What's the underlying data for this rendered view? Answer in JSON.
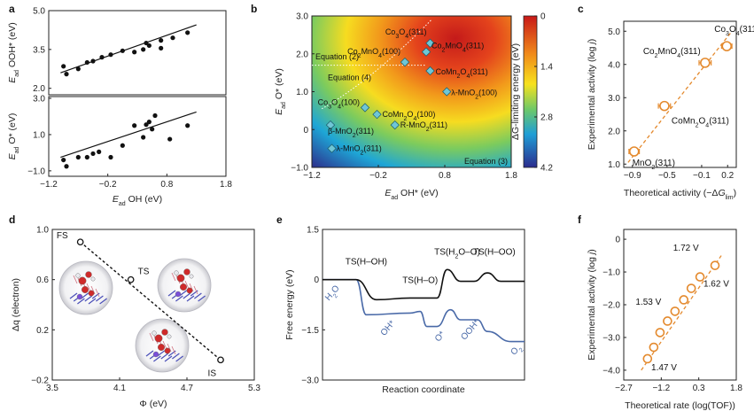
{
  "chart_data": [
    {
      "panel": "a",
      "type": "scatter",
      "subplots": [
        {
          "ylabel": "E_ad OOH* (eV)",
          "ylabel_parts": [
            "E",
            "ad",
            " OOH* (eV)"
          ],
          "ylim": [
            1.75,
            5.0
          ],
          "yticks": [
            "5.0",
            "3.5",
            "2.0"
          ],
          "ytick_values": [
            5.0,
            3.5,
            2.0
          ],
          "points": [
            [
              -0.95,
              2.85
            ],
            [
              -0.9,
              2.55
            ],
            [
              -0.7,
              2.75
            ],
            [
              -0.55,
              3.0
            ],
            [
              -0.45,
              3.05
            ],
            [
              -0.3,
              3.2
            ],
            [
              -0.15,
              3.3
            ],
            [
              0.05,
              3.45
            ],
            [
              0.25,
              3.4
            ],
            [
              0.4,
              3.5
            ],
            [
              0.45,
              3.75
            ],
            [
              0.5,
              3.65
            ],
            [
              0.7,
              3.55
            ],
            [
              0.7,
              3.85
            ],
            [
              0.9,
              3.95
            ],
            [
              1.15,
              4.15
            ]
          ],
          "fit": [
            [
              -1.0,
              2.6
            ],
            [
              1.3,
              4.45
            ]
          ]
        },
        {
          "ylabel": "E_ad O* (eV)",
          "ylabel_parts": [
            "E",
            "ad",
            " O* (eV)"
          ],
          "ylim": [
            -1.3,
            3.1
          ],
          "yticks": [
            "3.0",
            "1.0",
            "−1.0"
          ],
          "ytick_values": [
            3.0,
            1.0,
            -1.0
          ],
          "points": [
            [
              -0.95,
              -0.4
            ],
            [
              -0.9,
              -0.75
            ],
            [
              -0.7,
              -0.25
            ],
            [
              -0.55,
              -0.25
            ],
            [
              -0.45,
              -0.05
            ],
            [
              -0.35,
              0.05
            ],
            [
              -0.15,
              -0.25
            ],
            [
              0.05,
              0.4
            ],
            [
              0.25,
              1.5
            ],
            [
              0.4,
              0.85
            ],
            [
              0.45,
              1.55
            ],
            [
              0.5,
              1.7
            ],
            [
              0.55,
              1.3
            ],
            [
              0.6,
              2.05
            ],
            [
              0.85,
              0.75
            ],
            [
              1.15,
              1.5
            ]
          ],
          "fit": [
            [
              -1.0,
              -0.25
            ],
            [
              1.3,
              2.25
            ]
          ]
        }
      ],
      "xlabel": "E_ad OH (eV)",
      "xlabel_parts": [
        "E",
        "ad",
        " OH (eV)"
      ],
      "xlim": [
        -1.2,
        1.8
      ],
      "xticks": [
        "−1.2",
        "−0.2",
        "0.8",
        "1.8"
      ],
      "xtick_values": [
        -1.2,
        -0.2,
        0.8,
        1.8
      ]
    },
    {
      "panel": "b",
      "type": "heatmap",
      "xlabel": "E_ad OH* (eV)",
      "xlabel_parts": [
        "E",
        "ad",
        " OH* (eV)"
      ],
      "ylabel": "E_ad O* (eV)",
      "ylabel_parts": [
        "E",
        "ad",
        " O* (eV)"
      ],
      "xlim": [
        -1.2,
        1.8
      ],
      "ylim": [
        -1.0,
        3.0
      ],
      "xticks": [
        "−1.2",
        "−0.2",
        "0.8",
        "1.8"
      ],
      "xtick_values": [
        -1.2,
        -0.2,
        0.8,
        1.8
      ],
      "yticks": [
        "3.0",
        "2.0",
        "1.0",
        "0",
        "−1.0"
      ],
      "ytick_values": [
        3.0,
        2.0,
        1.0,
        0.0,
        -1.0
      ],
      "colorbar_label": "ΔG-limiting energy (eV)",
      "colorbar_range": [
        0,
        4.2
      ],
      "colorbar_ticks": [
        "0",
        "1.4",
        "2.8",
        "4.2"
      ],
      "colorbar_tick_values": [
        0,
        1.4,
        2.8,
        4.2
      ],
      "region_labels": [
        "Equation (2)",
        "Equation (4)",
        "Equation (3)"
      ],
      "points": [
        {
          "label": "Co3O4(311)",
          "parts": [
            "Co",
            "3",
            "O",
            "4",
            "(311)"
          ],
          "x": 0.58,
          "y": 2.28
        },
        {
          "label": "Co2MnO4(100)",
          "parts": [
            "Co",
            "2",
            "MnO",
            "4",
            "(100)"
          ],
          "x": 0.2,
          "y": 1.78
        },
        {
          "label": "Co2MnO4(311)",
          "parts": [
            "Co",
            "2",
            "MnO",
            "4",
            "(311)"
          ],
          "x": 0.52,
          "y": 2.05
        },
        {
          "label": "CoMn2O4(311)",
          "parts": [
            "CoMn",
            "2",
            "O",
            "4",
            "(311)"
          ],
          "x": 0.58,
          "y": 1.55
        },
        {
          "label": "λ-MnO2(100)",
          "parts": [
            "λ-MnO",
            "2",
            "(100)"
          ],
          "x": 0.83,
          "y": 1.0
        },
        {
          "label": "Co3O4(100)",
          "parts": [
            "Co",
            "3",
            "O",
            "4",
            "(100)"
          ],
          "x": -0.4,
          "y": 0.58
        },
        {
          "label": "CoMn2O4(100)",
          "parts": [
            "CoMn",
            "2",
            "O",
            "4",
            "(100)"
          ],
          "x": -0.22,
          "y": 0.4
        },
        {
          "label": "β-MnO2(311)",
          "parts": [
            "β-MnO",
            "2",
            "(311)"
          ],
          "x": -0.92,
          "y": 0.12
        },
        {
          "label": "R-MnO2(311)",
          "parts": [
            "R-MnO",
            "2",
            "(311)"
          ],
          "x": 0.05,
          "y": 0.12
        },
        {
          "label": "λ-MnO2(311)",
          "parts": [
            "λ-MnO",
            "2",
            "(311)"
          ],
          "x": -0.9,
          "y": -0.5
        }
      ]
    },
    {
      "panel": "c",
      "type": "scatter",
      "xlabel": "Theoretical activity (−ΔG_lim)",
      "xlabel_parts": [
        "Theoretical activity (−Δ",
        "G",
        "lim",
        ")"
      ],
      "ylabel": "Experimental activity (log j)",
      "ylabel_parts": [
        "Experimental activity (log",
        " j",
        ")"
      ],
      "xlim": [
        -1.0,
        0.3
      ],
      "ylim": [
        0.9,
        5.3
      ],
      "xticks": [
        "−0.9",
        "−0.5",
        "−0.1",
        "0.2"
      ],
      "xtick_values": [
        -0.9,
        -0.5,
        -0.1,
        0.2
      ],
      "yticks": [
        "5.0",
        "4.0",
        "3.0",
        "2.0",
        "1.0"
      ],
      "ytick_values": [
        5.0,
        4.0,
        3.0,
        2.0,
        1.0
      ],
      "points": [
        {
          "label": "Co3O4(311)",
          "parts": [
            "Co",
            "3",
            "O",
            "4",
            "(311)"
          ],
          "x": 0.19,
          "y": 4.55,
          "xerr": 0.06
        },
        {
          "label": "Co2MnO4(311)",
          "parts": [
            "Co",
            "2",
            "MnO",
            "4",
            "(311)"
          ],
          "x": -0.06,
          "y": 4.05,
          "xerr": 0.07
        },
        {
          "label": "CoMn2O4(311)",
          "parts": [
            "CoMn",
            "2",
            "O",
            "4",
            "(311)"
          ],
          "x": -0.53,
          "y": 2.75,
          "xerr": 0.07
        },
        {
          "label": "MnO2(311)",
          "parts": [
            "MnO",
            "2",
            "(311)"
          ],
          "x": -0.88,
          "y": 1.38,
          "xerr": 0.06
        }
      ],
      "fit": [
        [
          -0.95,
          1.05
        ],
        [
          0.25,
          5.0
        ]
      ]
    },
    {
      "panel": "d",
      "type": "line",
      "xlabel": "Φ (eV)",
      "ylabel": "Δq (electron)",
      "xlim": [
        3.5,
        5.3
      ],
      "ylim": [
        -0.2,
        1.0
      ],
      "xticks": [
        "3.5",
        "4.1",
        "4.7",
        "5.3"
      ],
      "xtick_values": [
        3.5,
        4.1,
        4.7,
        5.3
      ],
      "yticks": [
        "1.0",
        "0.6",
        "0.2",
        "−0.2"
      ],
      "ytick_values": [
        1.0,
        0.6,
        0.2,
        -0.2
      ],
      "points": [
        {
          "label": "FS",
          "x": 3.75,
          "y": 0.9
        },
        {
          "label": "TS",
          "x": 4.2,
          "y": 0.6
        },
        {
          "label": "IS",
          "x": 5.0,
          "y": -0.04
        }
      ]
    },
    {
      "panel": "e",
      "type": "line",
      "xlabel": "Reaction coordinate",
      "ylabel": "Free energy (eV)",
      "ylim": [
        -3.0,
        1.5
      ],
      "yticks": [
        "1.5",
        "0",
        "−1.5",
        "−3.0"
      ],
      "ytick_values": [
        1.5,
        0,
        -1.5,
        -3.0
      ],
      "black_labels": [
        "TS(H–OH)",
        "TS(H–O)",
        "TS(H2O–O)",
        "TS(H–OO)"
      ],
      "black_label_parts": [
        [
          "TS(H–OH)"
        ],
        [
          "TS(H–O)"
        ],
        [
          "TS(H",
          "2",
          "O–O)"
        ],
        [
          "TS(H–OO)"
        ]
      ],
      "blue_labels": [
        "H2O",
        "OH*",
        "O*",
        "OOH*",
        "O2"
      ],
      "blue_label_parts": [
        [
          "H",
          "2",
          "O"
        ],
        [
          "OH*"
        ],
        [
          "O*"
        ],
        [
          "OOH*"
        ],
        [
          "O",
          "2"
        ]
      ],
      "black_curve": [
        [
          0,
          0
        ],
        [
          1.0,
          0
        ],
        [
          1.6,
          -0.6
        ],
        [
          2.6,
          -0.55
        ],
        [
          3.4,
          -0.55
        ],
        [
          3.7,
          0.3
        ],
        [
          4.1,
          -0.05
        ],
        [
          4.5,
          -0.05
        ],
        [
          4.9,
          0.2
        ],
        [
          5.3,
          -0.05
        ],
        [
          6.0,
          -0.05
        ]
      ],
      "blue_curve": [
        [
          0,
          0
        ],
        [
          1.0,
          0
        ],
        [
          1.3,
          -1.05
        ],
        [
          2.6,
          -1.0
        ],
        [
          2.9,
          -0.95
        ],
        [
          3.1,
          -1.4
        ],
        [
          3.4,
          -1.4
        ],
        [
          3.8,
          -0.9
        ],
        [
          4.1,
          -1.2
        ],
        [
          4.6,
          -1.2
        ],
        [
          4.9,
          -1.55
        ],
        [
          5.6,
          -1.85
        ],
        [
          6.0,
          -1.85
        ]
      ]
    },
    {
      "panel": "f",
      "type": "scatter",
      "xlabel": "Theoretical rate (log(TOF))",
      "ylabel": "Experimental activity (log j)",
      "ylabel_parts": [
        "Experimental activity (log",
        " j",
        ")"
      ],
      "xlim": [
        -2.7,
        1.8
      ],
      "ylim": [
        -4.3,
        0.3
      ],
      "xticks": [
        "−2.7",
        "−1.2",
        "0.3",
        "1.8"
      ],
      "xtick_values": [
        -2.7,
        -1.2,
        0.3,
        1.8
      ],
      "yticks": [
        "0",
        "−1.0",
        "−2.0",
        "−3.0",
        "−4.0"
      ],
      "ytick_values": [
        0,
        -1.0,
        -2.0,
        -3.0,
        -4.0
      ],
      "points": [
        [
          -1.75,
          -3.65
        ],
        [
          -1.5,
          -3.3
        ],
        [
          -1.25,
          -2.85
        ],
        [
          -0.95,
          -2.5
        ],
        [
          -0.65,
          -2.2
        ],
        [
          -0.3,
          -1.85
        ],
        [
          0.0,
          -1.5
        ],
        [
          0.35,
          -1.15
        ],
        [
          0.95,
          -0.8
        ]
      ],
      "fit": [
        [
          -2.0,
          -4.0
        ],
        [
          1.2,
          -0.5
        ]
      ],
      "annotations": [
        "1.72 V",
        "1.62 V",
        "1.53 V",
        "1.47 V"
      ]
    }
  ]
}
